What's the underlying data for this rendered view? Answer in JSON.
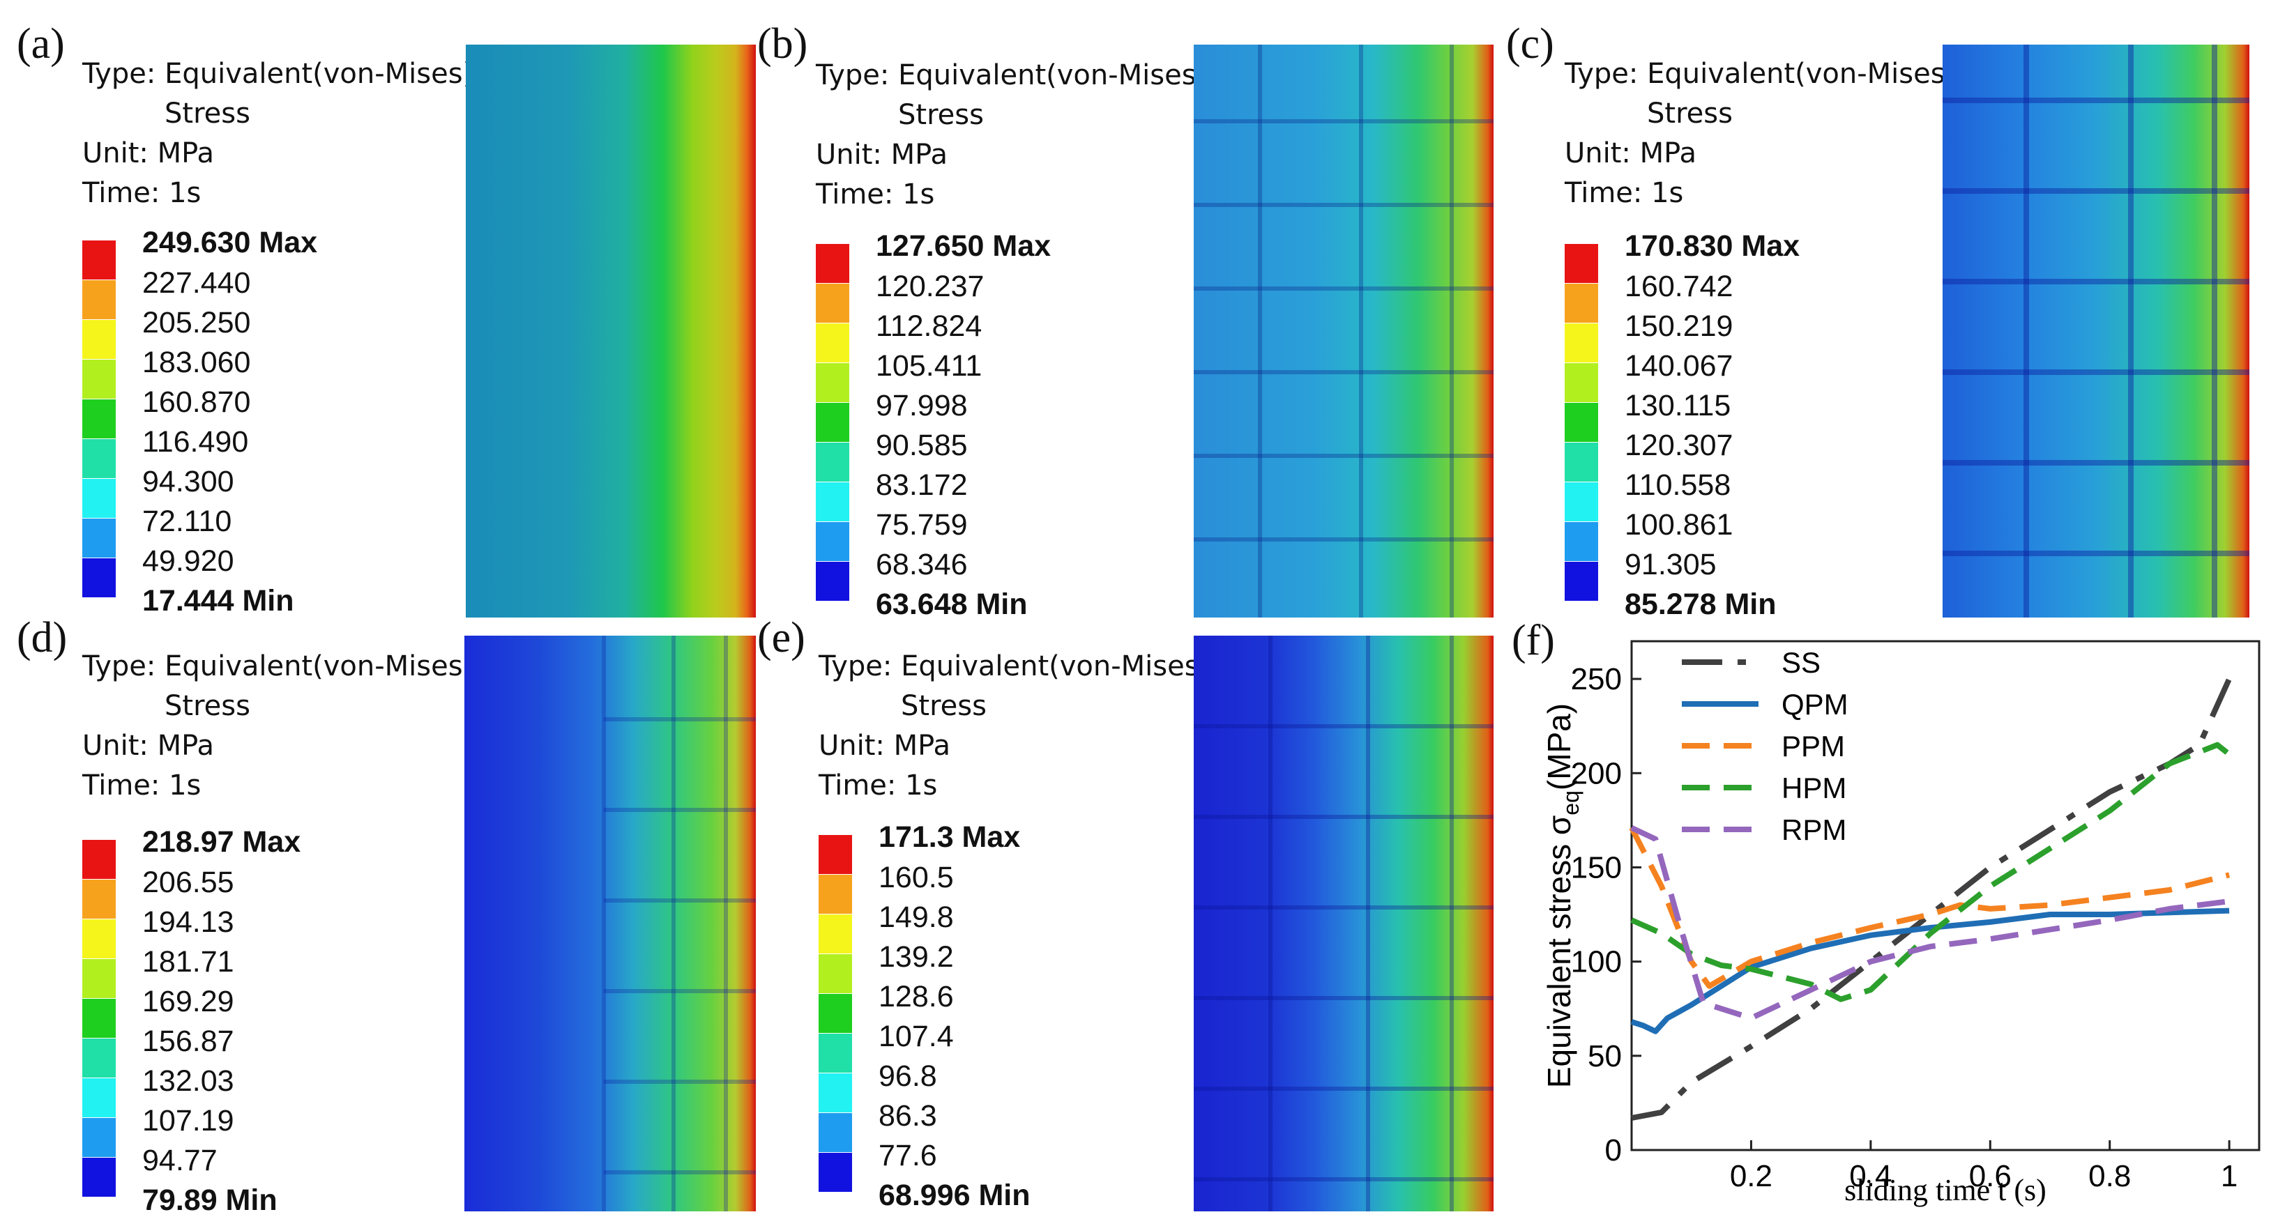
{
  "panels": [
    {
      "id": "a",
      "label": "(a)",
      "info": {
        "type_label": "Type: Equivalent(von-Mises)",
        "type_cont": "Stress",
        "unit": "Unit: MPa",
        "time": "Time: 1s"
      },
      "legend": {
        "max": "249.630 Max",
        "values": [
          "227.440",
          "205.250",
          "183.060",
          "160.870",
          "116.490",
          "94.300",
          "72.110",
          "49.920"
        ],
        "min": "17.444 Min"
      }
    },
    {
      "id": "b",
      "label": "(b)",
      "info": {
        "type_label": "Type: Equivalent(von-Mises)",
        "type_cont": "Stress",
        "unit": "Unit: MPa",
        "time": "Time: 1s"
      },
      "legend": {
        "max": "127.650 Max",
        "values": [
          "120.237",
          "112.824",
          "105.411",
          "97.998",
          "90.585",
          "83.172",
          "75.759",
          "68.346"
        ],
        "min": "63.648 Min"
      }
    },
    {
      "id": "c",
      "label": "(c)",
      "info": {
        "type_label": "Type: Equivalent(von-Mises)",
        "type_cont": "Stress",
        "unit": "Unit: MPa",
        "time": "Time: 1s"
      },
      "legend": {
        "max": "170.830 Max",
        "values": [
          "160.742",
          "150.219",
          "140.067",
          "130.115",
          "120.307",
          "110.558",
          "100.861",
          "91.305"
        ],
        "min": "85.278 Min"
      }
    },
    {
      "id": "d",
      "label": "(d)",
      "info": {
        "type_label": "Type: Equivalent(von-Mises)",
        "type_cont": "Stress",
        "unit": "Unit: MPa",
        "time": "Time: 1s"
      },
      "legend": {
        "max": "218.97 Max",
        "values": [
          "206.55",
          "194.13",
          "181.71",
          "169.29",
          "156.87",
          "132.03",
          "107.19",
          "94.77"
        ],
        "min": "79.89 Min"
      }
    },
    {
      "id": "e",
      "label": "(e)",
      "info": {
        "type_label": "Type: Equivalent(von-Mises)",
        "type_cont": "Stress",
        "unit": "Unit: MPa",
        "time": "Time: 1s"
      },
      "legend": {
        "max": "171.3 Max",
        "values": [
          "160.5",
          "149.8",
          "139.2",
          "128.6",
          "107.4",
          "96.8",
          "86.3",
          "77.6"
        ],
        "min": "68.996 Min"
      }
    }
  ],
  "legend_colors": [
    "#e81414",
    "#f7a21d",
    "#f5f51c",
    "#b2ef1f",
    "#1fcf1f",
    "#20e0a8",
    "#22f2f2",
    "#1e9cf0",
    "#1212e0"
  ],
  "chart_label": "(f)",
  "chart_data": {
    "type": "line",
    "title": "",
    "xlabel": "sliding time  t (s)",
    "ylabel_main": "Equivalent stress σ",
    "ylabel_sub": "eq",
    "ylabel_unit": "(MPa)",
    "xlim": [
      0.0,
      1.05
    ],
    "ylim": [
      0,
      270
    ],
    "xticks": [
      0.2,
      0.4,
      0.6,
      0.8,
      1.0
    ],
    "xtick_labels": [
      "0.2",
      "0.4",
      "0.6",
      "0.8",
      "1"
    ],
    "yticks": [
      0,
      50,
      100,
      150,
      200,
      250
    ],
    "ytick_labels": [
      "0",
      "50",
      "100",
      "150",
      "200",
      "250"
    ],
    "legend_position": "top-left",
    "series": [
      {
        "name": "SS",
        "color": "#404040",
        "dash": "58,22,12,22",
        "x": [
          0,
          0.05,
          0.1,
          0.2,
          0.3,
          0.4,
          0.5,
          0.6,
          0.7,
          0.8,
          0.9,
          0.95,
          1.0
        ],
        "y": [
          17,
          20,
          36,
          55,
          75,
          100,
          125,
          150,
          170,
          190,
          205,
          215,
          250
        ]
      },
      {
        "name": "QPM",
        "color": "#1f6eb5",
        "dash": "",
        "x": [
          0,
          0.02,
          0.04,
          0.06,
          0.1,
          0.15,
          0.2,
          0.3,
          0.4,
          0.5,
          0.6,
          0.7,
          0.8,
          0.9,
          1.0
        ],
        "y": [
          68,
          66,
          63,
          70,
          77,
          87,
          97,
          107,
          114,
          118,
          121,
          125,
          125,
          126,
          127
        ]
      },
      {
        "name": "PPM",
        "color": "#f58220",
        "dash": "40,20",
        "x": [
          0,
          0.05,
          0.1,
          0.13,
          0.2,
          0.3,
          0.4,
          0.5,
          0.55,
          0.6,
          0.7,
          0.8,
          0.9,
          1.0
        ],
        "y": [
          171,
          140,
          100,
          87,
          100,
          110,
          118,
          125,
          130,
          128,
          130,
          134,
          138,
          146
        ]
      },
      {
        "name": "HPM",
        "color": "#2ca02c",
        "dash": "40,20",
        "x": [
          0,
          0.05,
          0.1,
          0.15,
          0.2,
          0.3,
          0.35,
          0.4,
          0.5,
          0.6,
          0.7,
          0.8,
          0.9,
          0.98,
          1.0
        ],
        "y": [
          122,
          115,
          104,
          98,
          96,
          88,
          80,
          85,
          115,
          140,
          160,
          180,
          205,
          215,
          210
        ]
      },
      {
        "name": "RPM",
        "color": "#9467bd",
        "dash": "40,20",
        "x": [
          0,
          0.04,
          0.08,
          0.12,
          0.2,
          0.3,
          0.4,
          0.5,
          0.6,
          0.7,
          0.8,
          0.9,
          1.0
        ],
        "y": [
          171,
          165,
          120,
          78,
          70,
          85,
          100,
          108,
          112,
          117,
          122,
          128,
          132
        ]
      }
    ]
  }
}
